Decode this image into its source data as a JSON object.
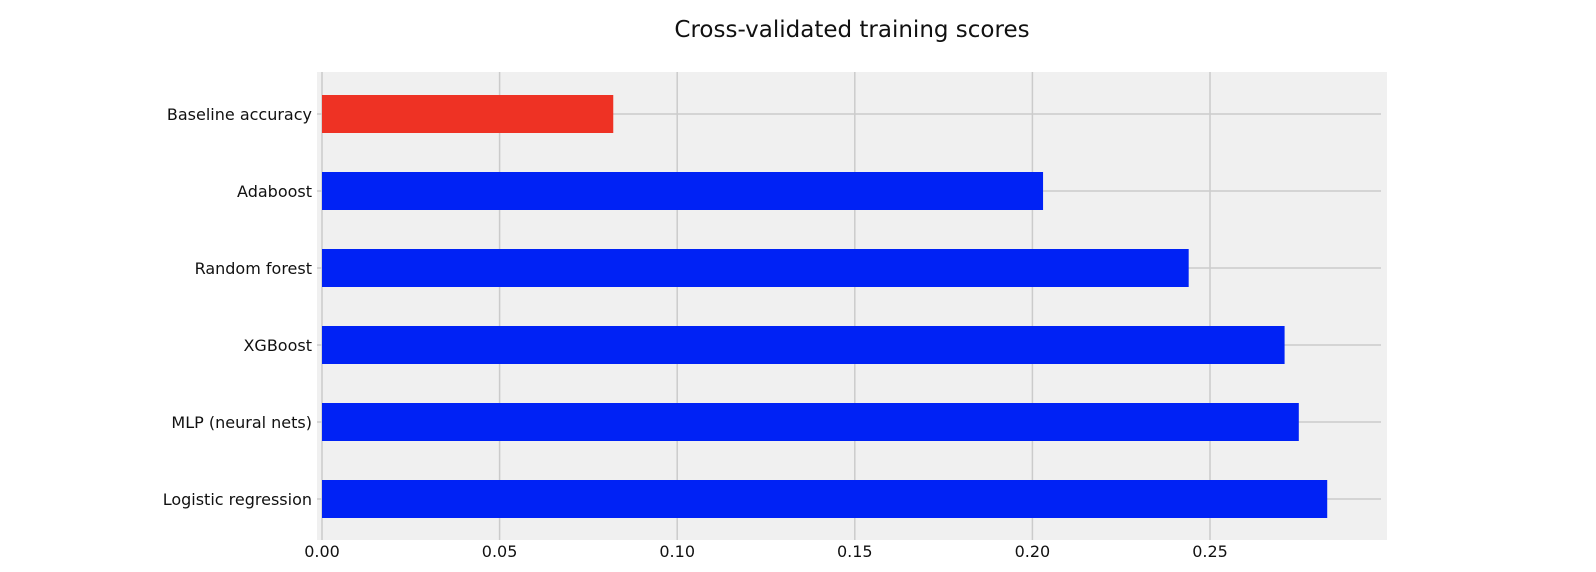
{
  "chart_data": {
    "type": "bar",
    "orientation": "horizontal",
    "title": "Cross-validated training scores",
    "xlabel": "",
    "ylabel": "",
    "categories": [
      "Baseline accuracy",
      "Adaboost",
      "Random forest",
      "XGBoost",
      "MLP (neural nets)",
      "Logistic regression"
    ],
    "values": [
      0.082,
      0.203,
      0.244,
      0.271,
      0.275,
      0.283
    ],
    "bar_colors": [
      "#ee3224",
      "#0022f5",
      "#0022f5",
      "#0022f5",
      "#0022f5",
      "#0022f5"
    ],
    "xlim": [
      0,
      0.296
    ],
    "xticks": [
      0.0,
      0.05,
      0.1,
      0.15,
      0.2,
      0.25
    ],
    "xtick_labels": [
      "0.00",
      "0.05",
      "0.10",
      "0.15",
      "0.20",
      "0.25"
    ],
    "grid": true,
    "legend": false,
    "background_color": "#f0f0f0",
    "grid_color": "#cbcbcb"
  }
}
